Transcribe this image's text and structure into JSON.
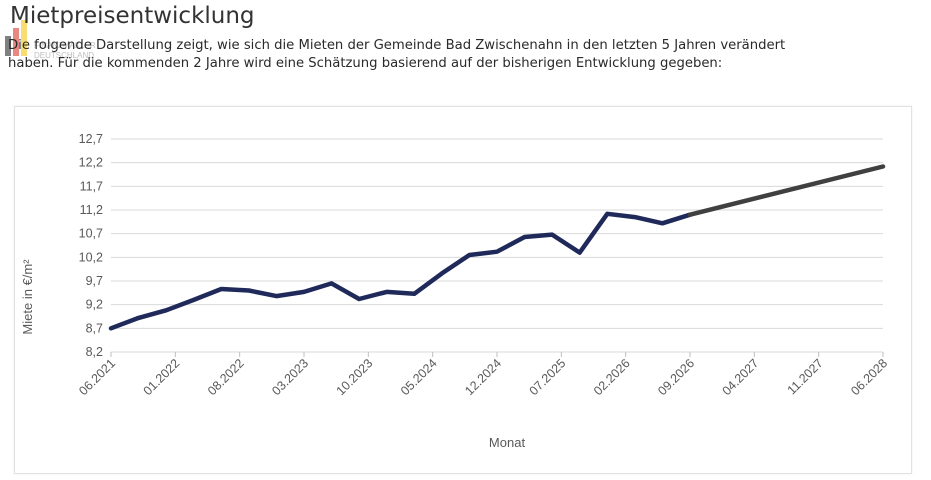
{
  "logo": {
    "text_line1": "FINANZMAKLER",
    "text_line2": "DEUTSCHLAND"
  },
  "header": {
    "title": "Mietpreisentwicklung"
  },
  "intro": {
    "line1": "Die folgende Darstellung zeigt, wie sich die Mieten der Gemeinde Bad Zwischenahn in den letzten 5 Jahren verändert",
    "line2": "haben. Für die kommenden 2 Jahre wird eine Schätzung basierend auf der bisherigen Entwicklung gegeben:"
  },
  "colors": {
    "actual": "#1f2a5a",
    "forecast": "#404040",
    "grid": "#d9d9d9",
    "axis_text": "#595959"
  },
  "chart_data": {
    "type": "line",
    "xlabel": "Monat",
    "ylabel": "Miete in €/m²",
    "ylim": [
      8.2,
      12.7
    ],
    "y_ticks": [
      "8,2",
      "8,7",
      "9,2",
      "9,7",
      "10,2",
      "10,7",
      "11,2",
      "11,7",
      "12,2",
      "12,7"
    ],
    "y_tick_values": [
      8.2,
      8.7,
      9.2,
      9.7,
      10.2,
      10.7,
      11.2,
      11.7,
      12.2,
      12.7
    ],
    "x_tick_labels": [
      "06.2021",
      "01.2022",
      "08.2022",
      "03.2023",
      "10.2023",
      "05.2024",
      "12.2024",
      "07.2025",
      "02.2026",
      "09.2026",
      "04.2027",
      "11.2027",
      "06.2028"
    ],
    "grid": true,
    "series": [
      {
        "values_x": [
          "06.2021",
          "09.2021",
          "12.2021",
          "03.2022",
          "06.2022",
          "09.2022",
          "12.2022",
          "03.2023",
          "06.2023",
          "09.2023",
          "12.2023",
          "03.2024",
          "06.2024",
          "09.2024",
          "12.2024",
          "03.2025",
          "06.2025",
          "09.2025",
          "12.2025",
          "03.2026",
          "06.2026",
          "09.2026"
        ],
        "values_y": [
          8.7,
          8.92,
          9.08,
          9.3,
          9.53,
          9.5,
          9.38,
          9.47,
          9.65,
          9.32,
          9.47,
          9.43,
          9.86,
          10.25,
          10.32,
          10.63,
          10.68,
          10.3,
          11.12,
          11.05,
          10.92,
          11.1
        ]
      },
      {
        "values_x": [
          "09.2026",
          "06.2028"
        ],
        "values_y": [
          11.1,
          12.12
        ]
      }
    ]
  }
}
